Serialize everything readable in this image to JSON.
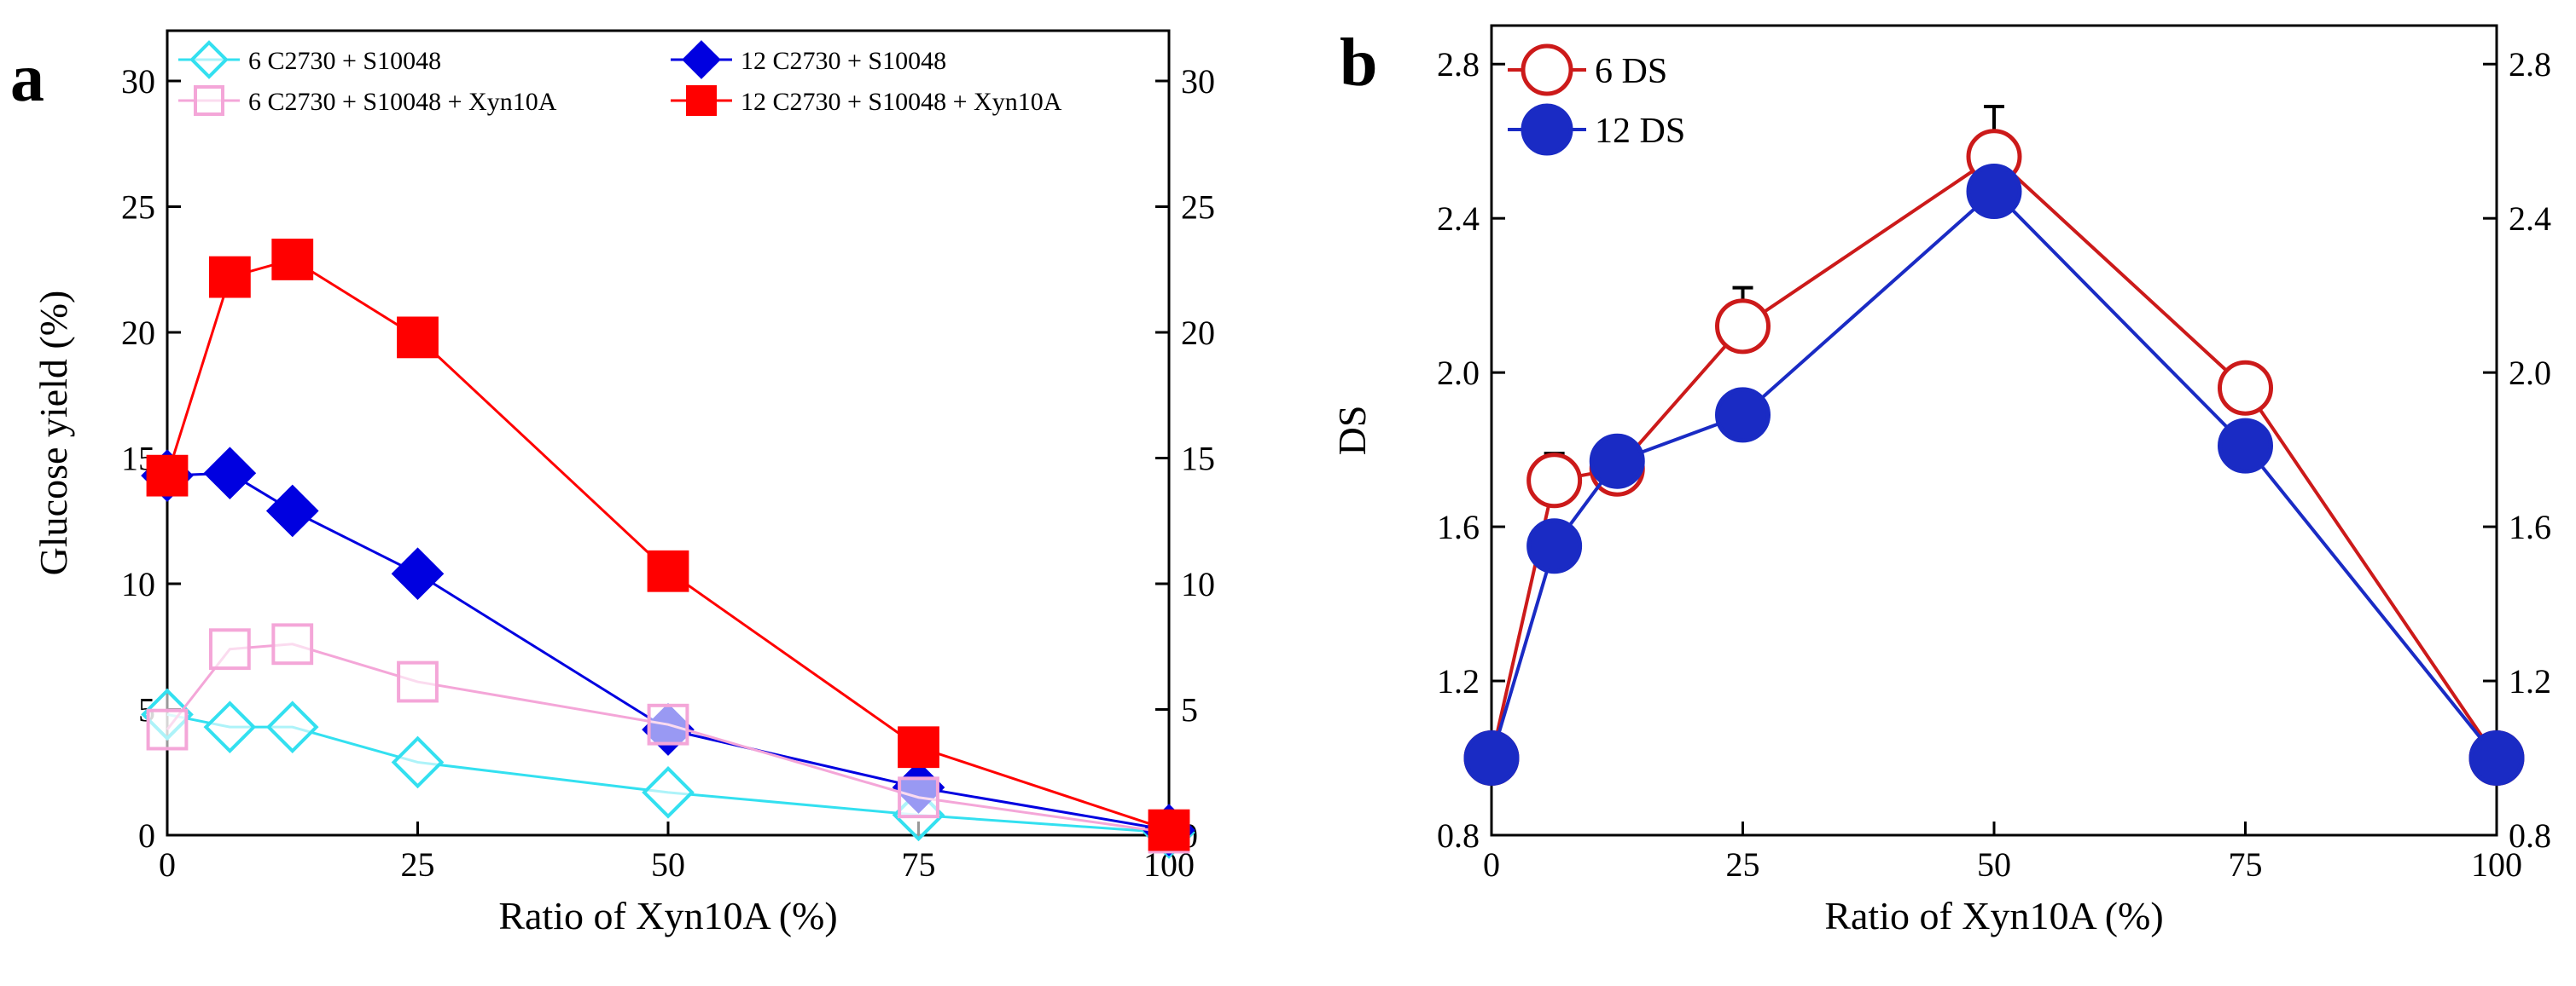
{
  "chart_data": [
    {
      "panel": "a",
      "type": "line",
      "xlabel": "Ratio of Xyn10A (%)",
      "ylabel": "Glucose yield (%)",
      "xlim": [
        0,
        100
      ],
      "ylim": [
        0,
        32
      ],
      "xticks": [
        0,
        25,
        50,
        75,
        100
      ],
      "yticks": [
        0,
        5,
        10,
        15,
        20,
        25,
        30
      ],
      "right_axis_mirror": true,
      "legend_position": "top",
      "series": [
        {
          "name": "6 C2730 + S10048",
          "marker": "diamond-open",
          "color": "#33E0F0",
          "x": [
            0,
            6.25,
            12.5,
            25,
            50,
            75,
            100
          ],
          "y": [
            4.8,
            4.3,
            4.3,
            2.9,
            1.7,
            0.8,
            0.1
          ]
        },
        {
          "name": "12 C2730 + S10048",
          "marker": "diamond-filled",
          "color": "#0000E0",
          "x": [
            0,
            6.25,
            12.5,
            25,
            50,
            75,
            100
          ],
          "y": [
            14.3,
            14.4,
            12.9,
            10.4,
            4.2,
            1.9,
            0.2
          ]
        },
        {
          "name": "6 C2730 + S10048 + Xyn10A",
          "marker": "square-open",
          "color": "#F4A6D8",
          "x": [
            0,
            6.25,
            12.5,
            25,
            50,
            75,
            100
          ],
          "y": [
            4.2,
            7.4,
            7.6,
            6.1,
            4.4,
            1.5,
            0.1
          ]
        },
        {
          "name": "12 C2730 + S10048 + Xyn10A",
          "marker": "square-filled",
          "color": "#FF0000",
          "x": [
            0,
            6.25,
            12.5,
            25,
            50,
            75,
            100
          ],
          "y": [
            14.3,
            22.2,
            22.9,
            19.8,
            10.5,
            3.5,
            0.2
          ]
        }
      ]
    },
    {
      "panel": "b",
      "type": "line",
      "xlabel": "Ratio of Xyn10A (%)",
      "ylabel": "DS",
      "xlim": [
        0,
        100
      ],
      "ylim": [
        0.8,
        2.9
      ],
      "xticks": [
        0,
        25,
        50,
        75,
        100
      ],
      "yticks": [
        0.8,
        1.2,
        1.6,
        2.0,
        2.4,
        2.8
      ],
      "right_axis_mirror": true,
      "legend_position": "top-left",
      "series": [
        {
          "name": "6 DS",
          "marker": "circle-open",
          "color": "#CC1A1A",
          "x": [
            0,
            6.25,
            12.5,
            25,
            50,
            75,
            100
          ],
          "y": [
            1.0,
            1.72,
            1.75,
            2.12,
            2.56,
            1.96,
            1.0
          ],
          "error": [
            0,
            0.07,
            0.03,
            0.1,
            0.13,
            0.05,
            0
          ]
        },
        {
          "name": "12 DS",
          "marker": "circle-filled",
          "color": "#1A2BC4",
          "x": [
            0,
            6.25,
            12.5,
            25,
            50,
            75,
            100
          ],
          "y": [
            1.0,
            1.55,
            1.77,
            1.89,
            2.47,
            1.81,
            1.0
          ],
          "error": [
            0,
            0.03,
            0.04,
            0.03,
            0.06,
            0.04,
            0
          ]
        }
      ]
    }
  ]
}
